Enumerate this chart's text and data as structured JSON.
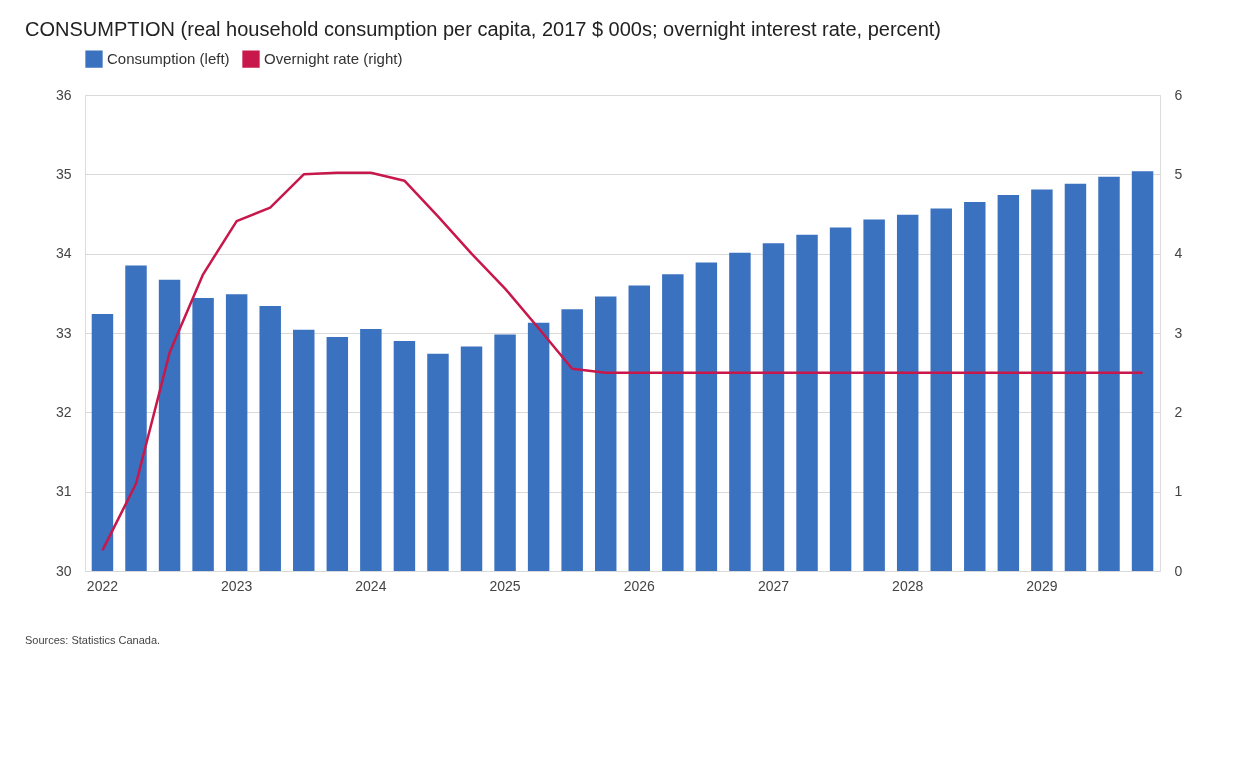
{
  "chart_data": {
    "type": "bar",
    "title": "CONSUMPTION (real household consumption per capita, 2017 $ 000s; overnight interest rate, percent)",
    "categories": [
      "2022",
      null,
      null,
      null,
      "2023",
      null,
      null,
      null,
      "2024",
      null,
      null,
      null,
      "2025",
      null,
      null,
      null,
      "2026",
      null,
      null,
      null,
      "2027",
      null,
      null,
      null,
      "2028",
      null,
      null,
      null,
      "2029",
      null,
      null,
      null
    ],
    "series": [
      {
        "name": "Consumption (left)",
        "color": "#3a72c0",
        "values": [
          33.24,
          33.85,
          33.67,
          33.44,
          33.49,
          33.34,
          33.04,
          32.95,
          33.05,
          32.9,
          32.74,
          32.83,
          32.98,
          33.13,
          33.3,
          33.46,
          33.6,
          33.74,
          33.89,
          34.01,
          34.13,
          34.24,
          34.33,
          34.43,
          34.49,
          34.57,
          34.65,
          34.74,
          34.81,
          34.88,
          34.97,
          35.04
        ]
      },
      {
        "name": "Overnight rate (right)",
        "type": "line",
        "axis": "y2",
        "color": "#c8174a",
        "values": [
          0.26,
          1.1,
          2.75,
          3.74,
          4.41,
          4.58,
          5.0,
          5.02,
          5.02,
          4.92,
          4.47,
          4.0,
          3.56,
          3.06,
          2.55,
          2.5,
          2.5,
          2.5,
          2.5,
          2.5,
          2.5,
          2.5,
          2.5,
          2.5,
          2.5,
          2.5,
          2.5,
          2.5,
          2.5,
          2.5,
          2.5,
          2.5
        ]
      }
    ],
    "ylim": [
      30,
      36
    ],
    "yticks": [
      30,
      31,
      32,
      33,
      34,
      35,
      36
    ],
    "y2lim": [
      0,
      6
    ],
    "y2ticks": [
      0,
      1,
      2,
      3,
      4,
      5,
      6
    ],
    "grid": "y",
    "legend": "top left",
    "annotations": [
      "Sources: Statistics Canada."
    ]
  }
}
